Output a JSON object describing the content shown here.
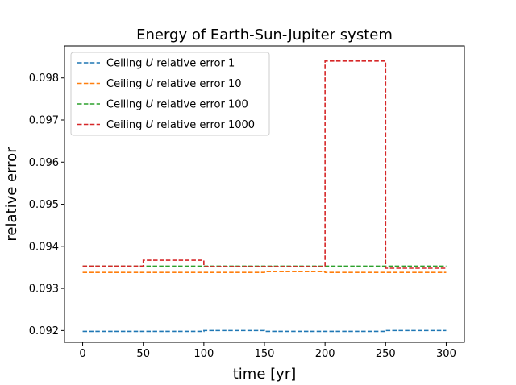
{
  "chart_data": {
    "type": "line",
    "title": "Energy of Earth-Sun-Jupiter system",
    "xlabel": "time [yr]",
    "ylabel": "relative error",
    "xlim": [
      -15,
      315
    ],
    "ylim": [
      0.09172,
      0.09876
    ],
    "xticks": [
      0,
      50,
      100,
      150,
      200,
      250,
      300
    ],
    "xtick_labels": [
      "0",
      "50",
      "100",
      "150",
      "200",
      "250",
      "300"
    ],
    "yticks": [
      0.092,
      0.093,
      0.094,
      0.095,
      0.096,
      0.097,
      0.098
    ],
    "ytick_labels": [
      "0.092",
      "0.093",
      "0.094",
      "0.095",
      "0.096",
      "0.097",
      "0.098"
    ],
    "grid": false,
    "legend_position": "top-left",
    "line_style": "dashed step",
    "series": [
      {
        "name_prefix": "Ceiling ",
        "name_var": "U",
        "name_suffix": " relative error 1",
        "color": "#1f77b4",
        "x": [
          0,
          100,
          150,
          250,
          300
        ],
        "y": [
          0.09198,
          0.092,
          0.09198,
          0.092,
          0.092
        ]
      },
      {
        "name_prefix": "Ceiling ",
        "name_var": "U",
        "name_suffix": " relative error 10",
        "color": "#ff7f0e",
        "x": [
          0,
          150,
          200,
          300
        ],
        "y": [
          0.09338,
          0.0934,
          0.09338,
          0.09338
        ]
      },
      {
        "name_prefix": "Ceiling ",
        "name_var": "U",
        "name_suffix": " relative error 100",
        "color": "#2ca02c",
        "x": [
          0,
          300
        ],
        "y": [
          0.09353,
          0.09353
        ]
      },
      {
        "name_prefix": "Ceiling ",
        "name_var": "U",
        "name_suffix": " relative error 1000",
        "color": "#d62728",
        "x": [
          0,
          50,
          100,
          200,
          250,
          300
        ],
        "y": [
          0.09353,
          0.09367,
          0.09352,
          0.0984,
          0.09348,
          0.09348
        ]
      }
    ]
  }
}
